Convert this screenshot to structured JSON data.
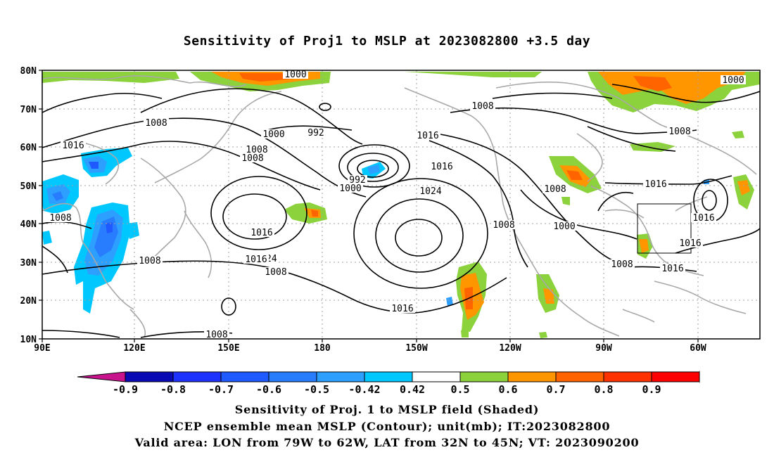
{
  "title": "Sensitivity of Proj1 to MSLP at 2023082800 +3.5 day",
  "lat_labels": [
    "80N",
    "70N",
    "60N",
    "50N",
    "40N",
    "30N",
    "20N",
    "10N"
  ],
  "lon_labels": [
    "90E",
    "120E",
    "150E",
    "180",
    "150W",
    "120W",
    "90W",
    "60W"
  ],
  "contour_labels": [
    "1000",
    "992",
    "1008",
    "1016",
    "1008",
    "1000",
    "1008",
    "1016",
    "992",
    "1000",
    "1008",
    "1016",
    "1024",
    "1016",
    "1024",
    "1008",
    "1000",
    "1008",
    "1000",
    "1016",
    "1000",
    "1008",
    "1016",
    "1016",
    "1008",
    "1016",
    "1008",
    "1008",
    "1008",
    "1016",
    "1016",
    "1008"
  ],
  "colorbar": {
    "labels": [
      "-0.9",
      "-0.8",
      "-0.7",
      "-0.6",
      "-0.5",
      "-0.42",
      "0.42",
      "0.5",
      "0.6",
      "0.7",
      "0.8",
      "0.9"
    ],
    "colors": [
      "#0a0ab4",
      "#1e32ff",
      "#1e5aff",
      "#287dff",
      "#2da0ff",
      "#00c8ff",
      "#ffffff",
      "#8cd23c",
      "#ff9600",
      "#ff6400",
      "#ff3200",
      "#ff0000"
    ],
    "low_end_color": "#c8148c",
    "high_end_color": "#ff9ec8"
  },
  "captions": {
    "line1": "Sensitivity of Proj. 1 to MSLP field (Shaded)",
    "line2": "NCEP ensemble mean MSLP (Contour); unit(mb); IT:2023082800",
    "line3": "Valid area: LON from 79W to 62W, LAT from 32N to 45N; VT: 2023090200"
  }
}
